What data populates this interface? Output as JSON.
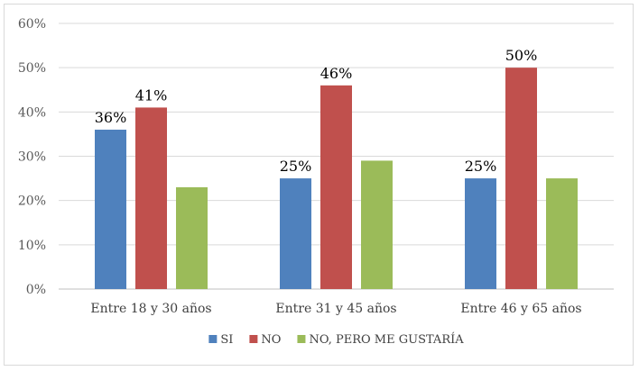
{
  "chart_data": {
    "type": "bar",
    "categories": [
      "Entre 18 y 30 años",
      "Entre 31 y 45 años",
      "Entre 46 y 65 años"
    ],
    "series": [
      {
        "name": "SI",
        "values": [
          0.36,
          0.25,
          0.25
        ],
        "labels": [
          "36%",
          "25%",
          "25%"
        ],
        "color": "#4f81bd"
      },
      {
        "name": "NO",
        "values": [
          0.41,
          0.46,
          0.5
        ],
        "labels": [
          "41%",
          "46%",
          "50%"
        ],
        "color": "#c0504d"
      },
      {
        "name": "NO, PERO ME GUSTARÍA",
        "values": [
          0.23,
          0.29,
          0.25
        ],
        "labels": [
          "",
          "",
          ""
        ],
        "color": "#9bbb59"
      }
    ],
    "yticks": [
      "0%",
      "10%",
      "20%",
      "30%",
      "40%",
      "50%",
      "60%"
    ],
    "ylim": [
      0,
      0.6
    ],
    "grid": true,
    "legend_position": "bottom"
  }
}
